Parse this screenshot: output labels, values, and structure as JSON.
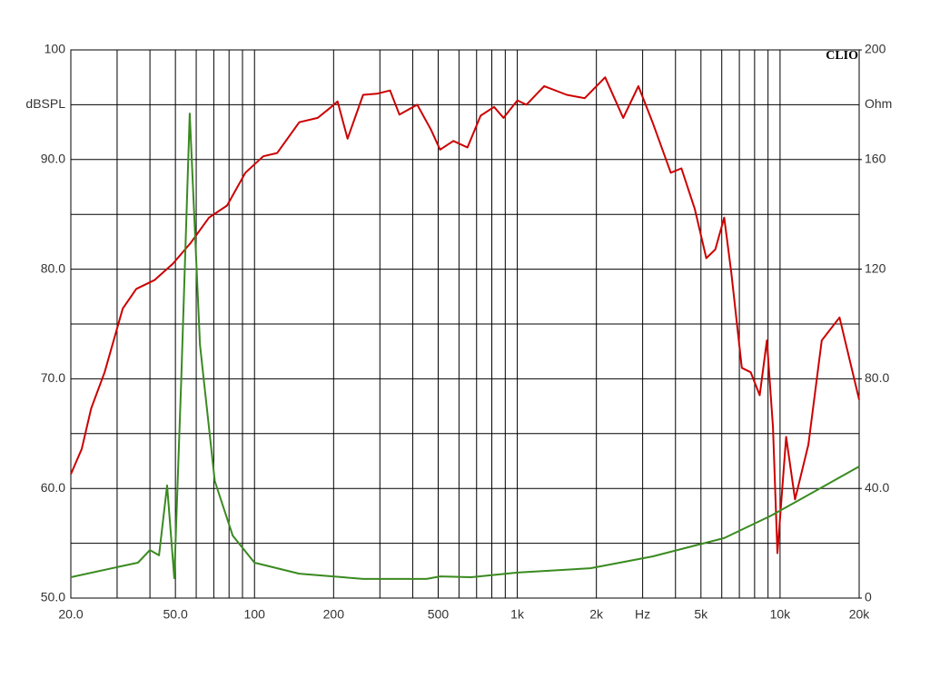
{
  "chart_data": {
    "type": "line",
    "brand": "CLIO",
    "xlabel": "Hz",
    "ylabel": "dBSPL",
    "y2label": "Ohm",
    "xscale": "log",
    "xlim": [
      20,
      20000
    ],
    "xticks": [
      {
        "value": 20,
        "label": "20.0"
      },
      {
        "value": 50,
        "label": "50.0"
      },
      100,
      200,
      500,
      {
        "value": 1000,
        "label": "1k"
      },
      {
        "value": 2000,
        "label": "2k"
      },
      {
        "value": 5000,
        "label": "5k"
      },
      {
        "value": 10000,
        "label": "10k"
      },
      {
        "value": 20000,
        "label": "20k"
      }
    ],
    "xlabel_at": 3000,
    "xminor": [
      30,
      40,
      60,
      70,
      80,
      90,
      300,
      400,
      600,
      700,
      800,
      900,
      3000,
      4000,
      6000,
      7000,
      8000,
      9000
    ],
    "ylim": [
      50,
      100
    ],
    "yticks": [
      {
        "value": 50,
        "label": "50.0"
      },
      {
        "value": 60,
        "label": "60.0"
      },
      {
        "value": 70,
        "label": "70.0"
      },
      {
        "value": 80,
        "label": "80.0"
      },
      {
        "value": 90,
        "label": "90.0"
      },
      100
    ],
    "ylabel_at": 95,
    "yminor": [
      55,
      65,
      75,
      85,
      95
    ],
    "y2lim": [
      0,
      200
    ],
    "y2ticks": [
      0,
      {
        "value": 40,
        "label": "40.0"
      },
      {
        "value": 80,
        "label": "80.0"
      },
      120,
      160,
      200
    ],
    "grid": true,
    "series": [
      {
        "color": "#cc0000",
        "x": [
          20,
          22,
          23.9,
          26.9,
          31.5,
          35.5,
          41.6,
          48.9,
          57.2,
          67.1,
          78.6,
          92.3,
          108,
          122,
          148,
          174,
          196,
          207,
          226,
          259,
          292,
          328,
          356,
          416,
          470,
          508,
          571,
          646,
          725,
          816,
          886,
          1001,
          1083,
          1266,
          1543,
          1806,
          2159,
          2530,
          2890,
          3272,
          3839,
          4213,
          4737,
          5241,
          5670,
          6131,
          6520,
          7151,
          7736,
          8370,
          8910,
          9398,
          9770,
          10550,
          11400,
          12820,
          14410,
          16840,
          20000
        ],
        "values": [
          61.3,
          63.6,
          67.3,
          70.6,
          76.4,
          78.2,
          79.0,
          80.5,
          82.4,
          84.7,
          85.8,
          88.8,
          90.3,
          90.6,
          93.4,
          93.8,
          94.8,
          95.3,
          91.9,
          95.9,
          96.0,
          96.3,
          94.1,
          95.0,
          92.7,
          90.9,
          91.7,
          91.1,
          94.0,
          94.8,
          93.8,
          95.4,
          95.0,
          96.7,
          95.9,
          95.6,
          97.5,
          93.8,
          96.7,
          93.4,
          88.8,
          89.2,
          85.5,
          81.0,
          81.8,
          84.7,
          79.7,
          71.0,
          70.6,
          68.5,
          73.5,
          65.6,
          54.1,
          64.7,
          59.0,
          64.0,
          73.5,
          75.6,
          68.1
        ]
      },
      {
        "color": "#3a8a20",
        "axis": "y2",
        "x": [
          20,
          30,
          36,
          40,
          43.3,
          46.5,
          49.5,
          52.6,
          56.7,
          62,
          70.6,
          82.6,
          100,
          148,
          259,
          452,
          508,
          668,
          1001,
          1900,
          3272,
          6131,
          9250,
          13820,
          20000
        ],
        "values": [
          7.6,
          11.3,
          12.9,
          17.5,
          15.6,
          41.1,
          7.3,
          79,
          176.8,
          92.4,
          42.7,
          22.8,
          12.9,
          8.9,
          7.0,
          7.0,
          7.9,
          7.6,
          9.3,
          10.9,
          15.2,
          21.9,
          30.1,
          39.4,
          48.0
        ]
      }
    ]
  }
}
